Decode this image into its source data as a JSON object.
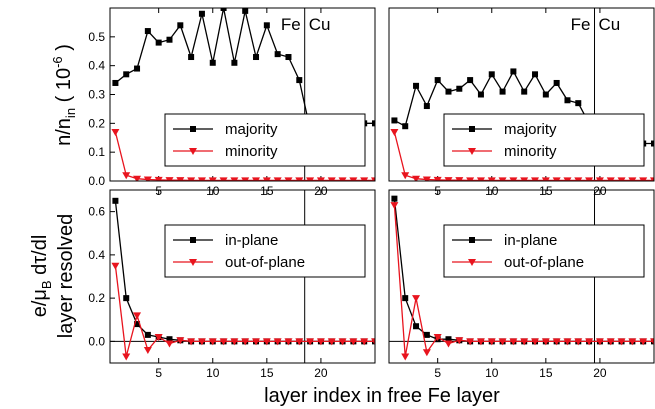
{
  "figure": {
    "xlabel": "layer index in free Fe layer",
    "ylabel_top": "n/n_in (10^-6)",
    "ylabel_bottom": "e/μ_B dτ/dl layer resolved",
    "interface_labels": [
      "Fe",
      "Cu"
    ]
  },
  "chart_data": [
    {
      "type": "line",
      "panel": "top-left",
      "xlim": [
        0.5,
        25
      ],
      "ylim": [
        0,
        0.6
      ],
      "x_ticks": [
        5,
        10,
        15,
        20
      ],
      "y_ticks": [
        0.0,
        0.1,
        0.2,
        0.3,
        0.4,
        0.5
      ],
      "interface_x": 18.5,
      "legend_position": "center-right",
      "series": [
        {
          "name": "majority",
          "color": "#000000",
          "marker": "square",
          "x": [
            1,
            2,
            3,
            4,
            5,
            6,
            7,
            8,
            9,
            10,
            11,
            12,
            13,
            14,
            15,
            16,
            17,
            18,
            19,
            20,
            21,
            22,
            23,
            24,
            25
          ],
          "y": [
            0.34,
            0.37,
            0.39,
            0.52,
            0.48,
            0.49,
            0.54,
            0.43,
            0.58,
            0.41,
            0.6,
            0.41,
            0.59,
            0.43,
            0.54,
            0.44,
            0.43,
            0.35,
            0.18,
            0.2,
            0.2,
            0.2,
            0.2,
            0.2,
            0.2
          ]
        },
        {
          "name": "minority",
          "color": "#e8141e",
          "marker": "triangle-down",
          "x": [
            1,
            2,
            3,
            4,
            5,
            6,
            7,
            8,
            9,
            10,
            11,
            12,
            13,
            14,
            15,
            16,
            17,
            18,
            19,
            20,
            21,
            22,
            23,
            24,
            25
          ],
          "y": [
            0.17,
            0.02,
            0.008,
            0.005,
            0.004,
            0.003,
            0.003,
            0.002,
            0.002,
            0.002,
            0.002,
            0.002,
            0.002,
            0.002,
            0.002,
            0.002,
            0.002,
            0.002,
            0.002,
            0.002,
            0.002,
            0.002,
            0.002,
            0.002,
            0.002
          ]
        }
      ]
    },
    {
      "type": "line",
      "panel": "top-right",
      "xlim": [
        0.5,
        25
      ],
      "ylim": [
        0,
        0.6
      ],
      "x_ticks": [
        5,
        10,
        15,
        20
      ],
      "y_ticks": [],
      "interface_x": 19.5,
      "legend_position": "center-right",
      "series": [
        {
          "name": "majority",
          "color": "#000000",
          "marker": "square",
          "x": [
            1,
            2,
            3,
            4,
            5,
            6,
            7,
            8,
            9,
            10,
            11,
            12,
            13,
            14,
            15,
            16,
            17,
            18,
            19,
            20,
            21,
            22,
            23,
            24,
            25
          ],
          "y": [
            0.21,
            0.19,
            0.33,
            0.26,
            0.35,
            0.31,
            0.32,
            0.35,
            0.3,
            0.37,
            0.31,
            0.38,
            0.31,
            0.37,
            0.3,
            0.34,
            0.28,
            0.27,
            0.2,
            0.12,
            0.13,
            0.13,
            0.13,
            0.13,
            0.13
          ]
        },
        {
          "name": "minority",
          "color": "#e8141e",
          "marker": "triangle-down",
          "x": [
            1,
            2,
            3,
            4,
            5,
            6,
            7,
            8,
            9,
            10,
            11,
            12,
            13,
            14,
            15,
            16,
            17,
            18,
            19,
            20,
            21,
            22,
            23,
            24,
            25
          ],
          "y": [
            0.17,
            0.02,
            0.008,
            0.005,
            0.004,
            0.003,
            0.003,
            0.002,
            0.002,
            0.002,
            0.002,
            0.002,
            0.002,
            0.002,
            0.002,
            0.002,
            0.002,
            0.002,
            0.002,
            0.002,
            0.002,
            0.002,
            0.002,
            0.002,
            0.002
          ]
        }
      ]
    },
    {
      "type": "line",
      "panel": "bottom-left",
      "xlim": [
        0.5,
        25
      ],
      "ylim": [
        -0.1,
        0.7
      ],
      "x_ticks": [
        5,
        10,
        15,
        20
      ],
      "y_ticks": [
        0.0,
        0.2,
        0.4,
        0.6
      ],
      "interface_x": 18.5,
      "legend_position": "center-right",
      "series": [
        {
          "name": "in-plane",
          "color": "#000000",
          "marker": "square",
          "x": [
            1,
            2,
            3,
            4,
            5,
            6,
            7,
            8,
            9,
            10,
            11,
            12,
            13,
            14,
            15,
            16,
            17,
            18,
            19,
            20,
            21,
            22,
            23,
            24,
            25
          ],
          "y": [
            0.65,
            0.2,
            0.08,
            0.03,
            0.02,
            0.01,
            0.005,
            0,
            0,
            0,
            0,
            0,
            0,
            0,
            0,
            0,
            0,
            0,
            0,
            0,
            0,
            0,
            0,
            0,
            0
          ]
        },
        {
          "name": "out-of-plane",
          "color": "#e8141e",
          "marker": "triangle-down",
          "x": [
            1,
            2,
            3,
            4,
            5,
            6,
            7,
            8,
            9,
            10,
            11,
            12,
            13,
            14,
            15,
            16,
            17,
            18,
            19,
            20,
            21,
            22,
            23,
            24,
            25
          ],
          "y": [
            0.35,
            -0.07,
            0.12,
            -0.04,
            0.02,
            -0.01,
            0.005,
            0,
            0,
            0,
            0,
            0,
            0,
            0,
            0,
            0,
            0,
            0,
            0,
            0,
            0,
            0,
            0,
            0,
            0
          ]
        }
      ]
    },
    {
      "type": "line",
      "panel": "bottom-right",
      "xlim": [
        0.5,
        25
      ],
      "ylim": [
        -0.1,
        0.7
      ],
      "x_ticks": [
        5,
        10,
        15,
        20
      ],
      "y_ticks": [],
      "interface_x": 19.5,
      "legend_position": "center-right",
      "series": [
        {
          "name": "in-plane",
          "color": "#000000",
          "marker": "square",
          "x": [
            1,
            2,
            3,
            4,
            5,
            6,
            7,
            8,
            9,
            10,
            11,
            12,
            13,
            14,
            15,
            16,
            17,
            18,
            19,
            20,
            21,
            22,
            23,
            24,
            25
          ],
          "y": [
            0.66,
            0.2,
            0.07,
            0.03,
            0.01,
            0.01,
            0.005,
            0,
            0,
            0,
            0,
            0,
            0,
            0,
            0,
            0,
            0,
            0,
            0,
            0,
            0,
            0,
            0,
            0,
            0
          ]
        },
        {
          "name": "out-of-plane",
          "color": "#e8141e",
          "marker": "triangle-down",
          "x": [
            1,
            2,
            3,
            4,
            5,
            6,
            7,
            8,
            9,
            10,
            11,
            12,
            13,
            14,
            15,
            16,
            17,
            18,
            19,
            20,
            21,
            22,
            23,
            24,
            25
          ],
          "y": [
            0.63,
            -0.07,
            0.2,
            -0.05,
            0.02,
            -0.01,
            0.005,
            0,
            0,
            0,
            0,
            0,
            0,
            0,
            0,
            0,
            0,
            0,
            0,
            0,
            0,
            0,
            0,
            0,
            0
          ]
        }
      ]
    }
  ]
}
